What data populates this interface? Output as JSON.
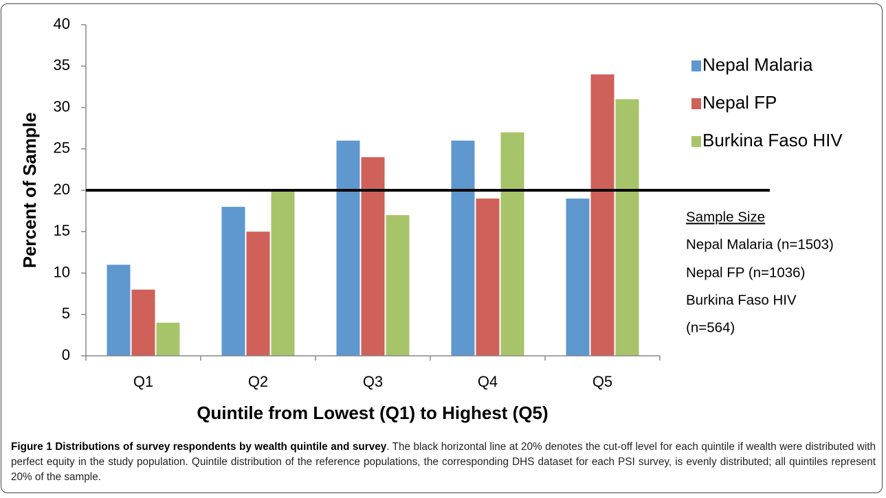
{
  "chart_data": {
    "type": "bar",
    "categories": [
      "Q1",
      "Q2",
      "Q3",
      "Q4",
      "Q5"
    ],
    "series": [
      {
        "name": "Nepal Malaria",
        "color": "#5f97cf",
        "values": [
          11,
          18,
          26,
          26,
          19
        ]
      },
      {
        "name": "Nepal FP",
        "color": "#cf605a",
        "values": [
          8,
          15,
          24,
          19,
          34
        ]
      },
      {
        "name": "Burkina Faso HIV",
        "color": "#a7c46a",
        "values": [
          4,
          20,
          17,
          27,
          31
        ]
      }
    ],
    "ylim": [
      0,
      40
    ],
    "yticks": [
      0,
      5,
      10,
      15,
      20,
      25,
      30,
      35,
      40
    ],
    "grid": false,
    "reference_line": 20,
    "ylabel": "Percent of Sample",
    "xlabel": "Quintile from Lowest (Q1) to Highest (Q5)",
    "legend": "right",
    "annotations": [
      "Sample Size",
      "Nepal Malaria (n=1503)",
      "Nepal FP (n=1036)",
      "Burkina Faso HIV",
      "(n=564)"
    ]
  },
  "caption": {
    "title": "Figure 1 Distributions of survey respondents by wealth quintile and survey",
    "text": ". The black horizontal line at 20% denotes the cut-off level for each quintile if wealth were distributed with perfect equity in the study population. Quintile distribution of the reference populations, the corresponding DHS dataset for each PSI survey, is evenly distributed; all quintiles represent 20% of the sample."
  }
}
